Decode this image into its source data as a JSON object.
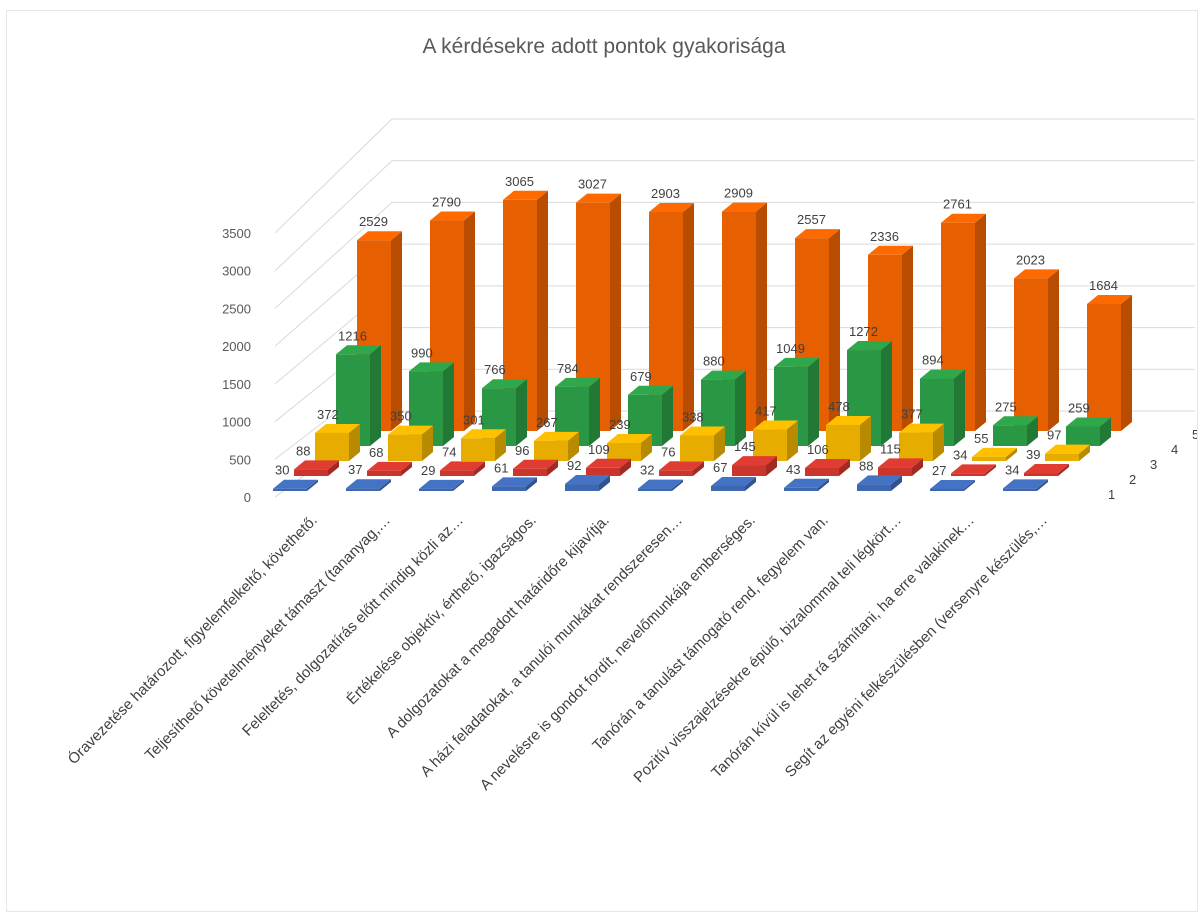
{
  "chart_data": {
    "type": "bar",
    "subtype": "3d-clustered-column",
    "title": "A kérdésekre adott pontok gyakorisága",
    "categories": [
      "Óravezetése határozott, figyelemfelkeltő, követhető.",
      "Teljesíthető követelményeket támaszt (tananyag,…",
      "Feleltetés, dolgozatírás előtt mindig közli az…",
      "Értékelése objektív, érthető, igazságos.",
      "A dolgozatokat a megadott határidőre kijavítja.",
      "A házi feladatokat, a tanulói munkákat rendszeresen…",
      "A nevelésre is gondot fordít, nevelőmunkája emberséges.",
      "Tanórán a tanulást támogató rend, fegyelem van.",
      "Pozitív visszajelzésekre épülő, bizalommal teli légkört…",
      "Tanórán kívül is lehet rá számítani, ha erre valakinek…",
      "Segít az egyéni felkészülésben (versenyre készülés,…"
    ],
    "series": [
      {
        "name": "1",
        "color": "#4472c4",
        "values": [
          30,
          37,
          29,
          61,
          92,
          32,
          67,
          43,
          88,
          27,
          34
        ]
      },
      {
        "name": "2",
        "color": "#e03c31",
        "values": [
          88,
          68,
          74,
          96,
          109,
          76,
          145,
          106,
          115,
          34,
          39
        ]
      },
      {
        "name": "3",
        "color": "#ffc000",
        "values": [
          372,
          350,
          301,
          267,
          239,
          338,
          417,
          478,
          377,
          55,
          97
        ]
      },
      {
        "name": "4",
        "color": "#2ea84a",
        "values": [
          1216,
          990,
          766,
          784,
          679,
          880,
          1049,
          1272,
          894,
          275,
          259
        ]
      },
      {
        "name": "5",
        "color": "#ff6a00",
        "values": [
          2529,
          2790,
          3065,
          3027,
          2903,
          2909,
          2557,
          2336,
          2761,
          2023,
          1684
        ]
      }
    ],
    "y_ticks": [
      "0",
      "500",
      "1000",
      "1500",
      "2000",
      "2500",
      "3000",
      "3500"
    ],
    "ylim": [
      0,
      3500
    ],
    "grid": true,
    "legend": "none (series names shown on depth axis)"
  }
}
